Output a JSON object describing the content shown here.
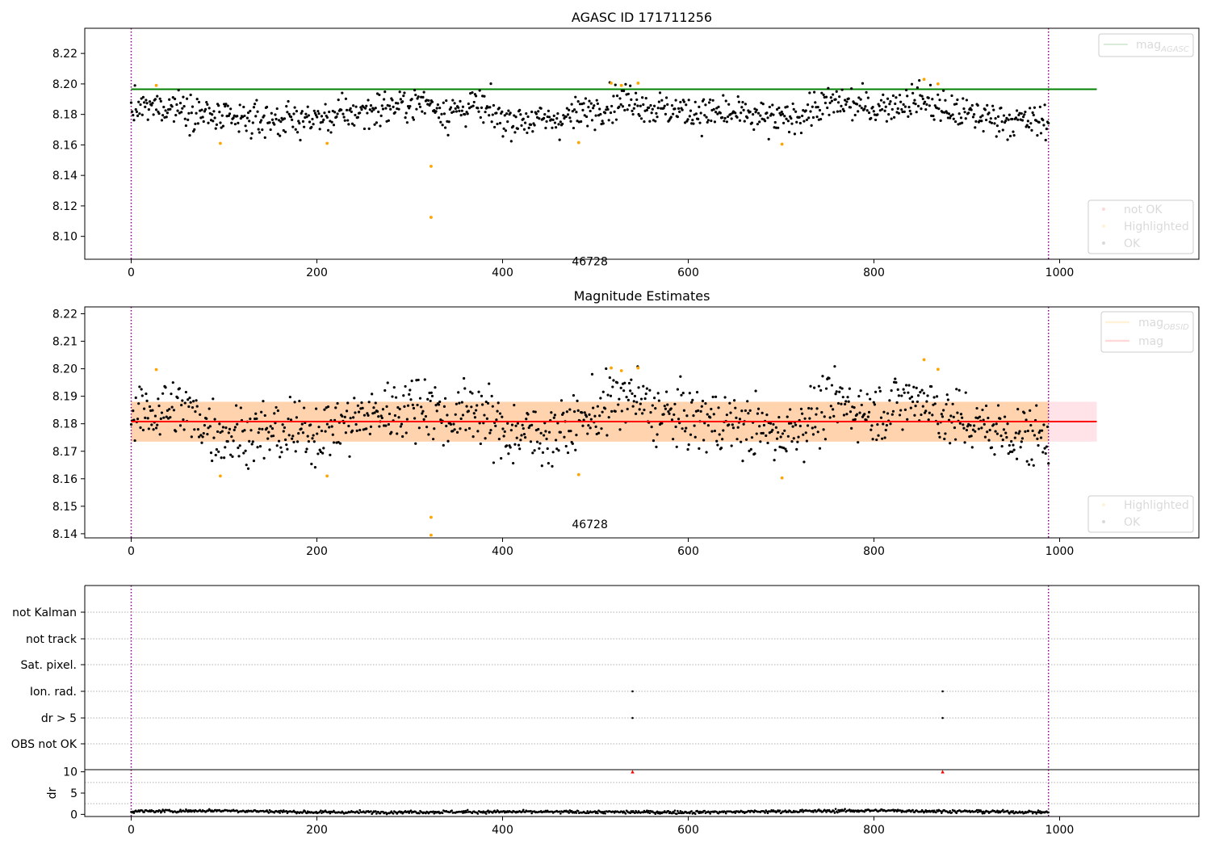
{
  "chart_data": [
    {
      "type": "scatter",
      "title": "AGASC ID 171711256",
      "xlim": [
        -50,
        1150
      ],
      "ylim": [
        8.085,
        8.2365
      ],
      "x_ticks": [
        "0",
        "200",
        "400",
        "600",
        "800",
        "1000"
      ],
      "y_ticks": [
        "8.10",
        "8.12",
        "8.14",
        "8.16",
        "8.18",
        "8.20",
        "8.22"
      ],
      "obs_bounds": [
        0,
        988
      ],
      "annotation": {
        "text": "46728",
        "x": 494,
        "y": 8.09
      },
      "reference_lines": [
        {
          "name": "mag_AGASC",
          "name_base": "mag",
          "name_sub": "AGASC",
          "y": 8.1965,
          "x_range": [
            0,
            1040
          ],
          "color": "#008000"
        }
      ],
      "series": [
        {
          "name": "not OK",
          "color": "#ff0000",
          "points": []
        },
        {
          "name": "Highlighted",
          "color": "#ffa500",
          "points": [
            [
              27,
              8.199
            ],
            [
              96,
              8.161
            ],
            [
              211,
              8.161
            ],
            [
              323,
              8.146
            ],
            [
              323,
              8.1125
            ],
            [
              482,
              8.1615
            ],
            [
              517,
              8.2005
            ],
            [
              528,
              8.199
            ],
            [
              546,
              8.2005
            ],
            [
              701,
              8.1605
            ],
            [
              854,
              8.203
            ],
            [
              869,
              8.2
            ]
          ]
        },
        {
          "name": "OK",
          "color": "#000000",
          "n": 988,
          "x_range": [
            0,
            988
          ],
          "levels": [
            [
              0,
              8.183
            ],
            [
              50,
              8.186
            ],
            [
              100,
              8.176
            ],
            [
              200,
              8.177
            ],
            [
              280,
              8.185
            ],
            [
              320,
              8.188
            ],
            [
              340,
              8.181
            ],
            [
              370,
              8.186
            ],
            [
              400,
              8.177
            ],
            [
              450,
              8.176
            ],
            [
              480,
              8.18
            ],
            [
              520,
              8.188
            ],
            [
              540,
              8.19
            ],
            [
              560,
              8.184
            ],
            [
              600,
              8.182
            ],
            [
              650,
              8.18
            ],
            [
              700,
              8.176
            ],
            [
              760,
              8.188
            ],
            [
              800,
              8.184
            ],
            [
              850,
              8.19
            ],
            [
              880,
              8.182
            ],
            [
              950,
              8.176
            ],
            [
              988,
              8.175
            ]
          ]
        }
      ],
      "legends": [
        {
          "position": "upper right",
          "items": [
            {
              "label_base": "mag",
              "label_sub": "AGASC",
              "color": "#008000",
              "kind": "line"
            }
          ]
        },
        {
          "position": "lower right",
          "items": [
            {
              "label": "not OK",
              "color": "#ff0000",
              "kind": "dot"
            },
            {
              "label": "Highlighted",
              "color": "#ffa500",
              "kind": "dot"
            },
            {
              "label": "OK",
              "color": "#000000",
              "kind": "dot"
            }
          ]
        }
      ]
    },
    {
      "type": "scatter",
      "title": "Magnitude Estimates",
      "xlim": [
        -50,
        1150
      ],
      "ylim": [
        8.1385,
        8.2225
      ],
      "x_ticks": [
        "0",
        "200",
        "400",
        "600",
        "800",
        "1000"
      ],
      "y_ticks": [
        "8.14",
        "8.15",
        "8.16",
        "8.17",
        "8.18",
        "8.19",
        "8.20",
        "8.21",
        "8.22"
      ],
      "obs_bounds": [
        0,
        988
      ],
      "annotation": {
        "text": "46728",
        "x": 494,
        "y": 8.1415
      },
      "bands": [
        {
          "y_range": [
            8.1735,
            8.188
          ],
          "x_range": [
            0,
            1040
          ],
          "color": "#ffc0cb",
          "opacity": 0.45
        },
        {
          "y_range": [
            8.1735,
            8.188
          ],
          "x_range": [
            0,
            988
          ],
          "color": "#ffa500",
          "opacity": 0.25
        }
      ],
      "reference_lines": [
        {
          "name": "mag_OBSID",
          "y": 8.1808,
          "x_range": [
            0,
            988
          ],
          "color": "#ffa500"
        },
        {
          "name": "mag",
          "y": 8.1808,
          "x_range": [
            0,
            1040
          ],
          "color": "#ff0000"
        }
      ],
      "series": [
        {
          "name": "Highlighted",
          "color": "#ffa500",
          "points": [
            [
              27,
              8.1997
            ],
            [
              96,
              8.161
            ],
            [
              211,
              8.161
            ],
            [
              323,
              8.146
            ],
            [
              323,
              8.1395
            ],
            [
              482,
              8.1615
            ],
            [
              517,
              8.2003
            ],
            [
              528,
              8.1993
            ],
            [
              546,
              8.2003
            ],
            [
              701,
              8.1603
            ],
            [
              854,
              8.2033
            ],
            [
              869,
              8.1998
            ]
          ]
        },
        {
          "name": "OK",
          "color": "#000000",
          "n": 988,
          "x_range": [
            0,
            988
          ],
          "levels": [
            [
              0,
              8.183
            ],
            [
              50,
              8.186
            ],
            [
              100,
              8.176
            ],
            [
              200,
              8.177
            ],
            [
              280,
              8.185
            ],
            [
              320,
              8.188
            ],
            [
              340,
              8.181
            ],
            [
              370,
              8.186
            ],
            [
              400,
              8.177
            ],
            [
              450,
              8.176
            ],
            [
              480,
              8.18
            ],
            [
              520,
              8.188
            ],
            [
              540,
              8.19
            ],
            [
              560,
              8.184
            ],
            [
              600,
              8.182
            ],
            [
              650,
              8.18
            ],
            [
              700,
              8.176
            ],
            [
              760,
              8.188
            ],
            [
              800,
              8.184
            ],
            [
              850,
              8.19
            ],
            [
              880,
              8.182
            ],
            [
              950,
              8.176
            ],
            [
              988,
              8.175
            ]
          ]
        }
      ],
      "legends": [
        {
          "position": "upper right",
          "items": [
            {
              "label_base": "mag",
              "label_sub": "OBSID",
              "color": "#ffa500",
              "kind": "line"
            },
            {
              "label": "mag",
              "color": "#ff0000",
              "kind": "line"
            }
          ]
        },
        {
          "position": "lower right",
          "items": [
            {
              "label": "Highlighted",
              "color": "#ffa500",
              "kind": "dot"
            },
            {
              "label": "OK",
              "color": "#000000",
              "kind": "dot"
            }
          ]
        }
      ]
    },
    {
      "type": "scatter",
      "title": "",
      "xlim": [
        -50,
        1150
      ],
      "categories": [
        "OBS not OK",
        "dr > 5",
        "Ion. rad.",
        "Sat. pixel.",
        "not track",
        "not Kalman"
      ],
      "obs_bounds": [
        0,
        988
      ],
      "flag_points": [
        {
          "category": "Ion. rad.",
          "x": [
            540,
            874
          ]
        },
        {
          "category": "dr > 5",
          "x": [
            540,
            874
          ]
        }
      ],
      "series": []
    },
    {
      "type": "scatter",
      "title": "",
      "ylabel": "dr",
      "xlim": [
        -50,
        1150
      ],
      "ylim": [
        -0.5,
        10.5
      ],
      "x_ticks": [
        "0",
        "200",
        "400",
        "600",
        "800",
        "1000"
      ],
      "y_ticks": [
        "0",
        "5",
        "10"
      ],
      "obs_bounds": [
        0,
        988
      ],
      "series": [
        {
          "name": "dr",
          "color": "#000000",
          "n": 988,
          "x_range": [
            0,
            988
          ],
          "levels": [
            [
              0,
              0.7
            ],
            [
              100,
              0.9
            ],
            [
              200,
              0.5
            ],
            [
              400,
              0.6
            ],
            [
              600,
              0.5
            ],
            [
              800,
              0.9
            ],
            [
              988,
              0.5
            ]
          ]
        },
        {
          "name": "dr > 10",
          "color": "#ff0000",
          "marker": "triangle",
          "points": [
            [
              540,
              10
            ],
            [
              874,
              10
            ]
          ]
        }
      ]
    }
  ]
}
